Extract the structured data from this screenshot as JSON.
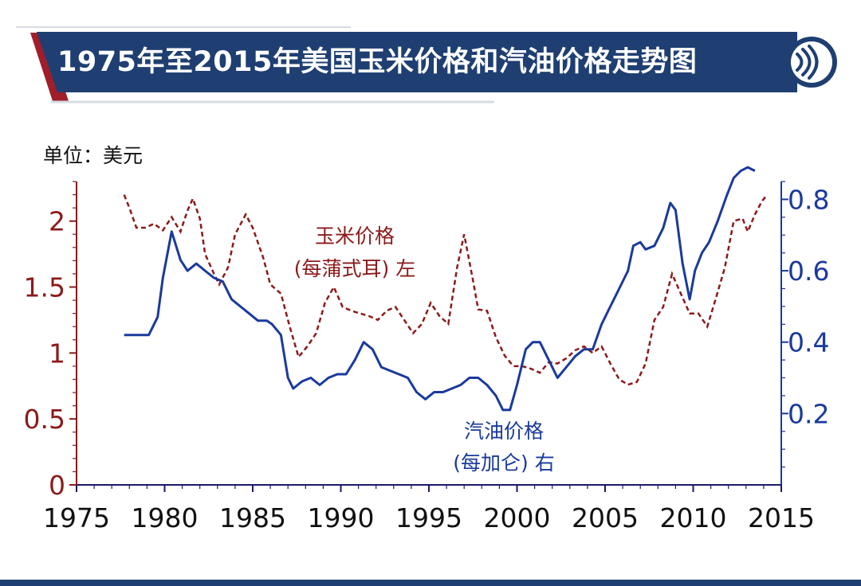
{
  "title": "1975年至2015年美国玉米价格和汽油价格走势图",
  "unit_label": "单位：美元",
  "icon": "sound-wave-logo-icon",
  "colors": {
    "corn": "#8b1a1a",
    "gasoline": "#1a3a9c",
    "banner": "#1f3f72",
    "accent": "#a01e2a",
    "axis_left": "#8b1a1a",
    "axis_right": "#1a3a9c"
  },
  "chart_data": {
    "type": "line",
    "title": "1975年至2015年美国玉米价格和汽油价格走势图",
    "xlabel": "",
    "x_range": [
      1975,
      2015
    ],
    "x_ticks": [
      1975,
      1980,
      1985,
      1990,
      1995,
      2000,
      2005,
      2010,
      2015
    ],
    "x_tick_labels": [
      "1975",
      "1980",
      "1985",
      "1990",
      "1995",
      "2000",
      "2005",
      "2010",
      "2015"
    ],
    "left_axis": {
      "range": [
        0,
        2.3
      ],
      "ticks": [
        0,
        0.5,
        1,
        1.5,
        2
      ],
      "tick_labels": [
        "0",
        "0.5",
        "1",
        "1.5",
        "2"
      ]
    },
    "right_axis": {
      "range": [
        0,
        0.85
      ],
      "ticks": [
        0.2,
        0.4,
        0.6,
        0.8
      ],
      "tick_labels": [
        "0.2",
        "0.4",
        "0.6",
        "0.8"
      ]
    },
    "grid": false,
    "legend": "inline annotations",
    "series": [
      {
        "name": "玉米价格",
        "unit_note": "(每蒲式耳) 左",
        "axis": "left",
        "style": "dashed",
        "points": [
          [
            1977.7,
            2.2
          ],
          [
            1978.0,
            2.1
          ],
          [
            1978.4,
            1.95
          ],
          [
            1978.9,
            1.95
          ],
          [
            1979.4,
            1.98
          ],
          [
            1979.9,
            1.93
          ],
          [
            1980.4,
            2.03
          ],
          [
            1980.9,
            1.92
          ],
          [
            1981.3,
            2.08
          ],
          [
            1981.6,
            2.17
          ],
          [
            1982.0,
            2.02
          ],
          [
            1982.3,
            1.75
          ],
          [
            1982.8,
            1.6
          ],
          [
            1983.1,
            1.52
          ],
          [
            1983.6,
            1.65
          ],
          [
            1984.0,
            1.9
          ],
          [
            1984.6,
            2.05
          ],
          [
            1985.0,
            1.95
          ],
          [
            1985.6,
            1.72
          ],
          [
            1986.0,
            1.52
          ],
          [
            1986.6,
            1.45
          ],
          [
            1987.1,
            1.2
          ],
          [
            1987.6,
            0.97
          ],
          [
            1988.1,
            1.05
          ],
          [
            1988.6,
            1.15
          ],
          [
            1989.1,
            1.38
          ],
          [
            1989.6,
            1.5
          ],
          [
            1990.1,
            1.35
          ],
          [
            1990.6,
            1.32
          ],
          [
            1991.1,
            1.3
          ],
          [
            1991.6,
            1.28
          ],
          [
            1992.1,
            1.25
          ],
          [
            1992.6,
            1.32
          ],
          [
            1993.1,
            1.35
          ],
          [
            1993.6,
            1.25
          ],
          [
            1994.1,
            1.15
          ],
          [
            1994.6,
            1.22
          ],
          [
            1995.1,
            1.38
          ],
          [
            1995.6,
            1.28
          ],
          [
            1996.1,
            1.22
          ],
          [
            1996.6,
            1.65
          ],
          [
            1997.0,
            1.9
          ],
          [
            1997.5,
            1.55
          ],
          [
            1997.8,
            1.33
          ],
          [
            1998.3,
            1.32
          ],
          [
            1998.8,
            1.12
          ],
          [
            1999.3,
            0.98
          ],
          [
            1999.8,
            0.9
          ],
          [
            2000.3,
            0.9
          ],
          [
            2000.8,
            0.88
          ],
          [
            2001.3,
            0.85
          ],
          [
            2001.8,
            0.93
          ],
          [
            2002.3,
            0.92
          ],
          [
            2002.8,
            0.96
          ],
          [
            2003.3,
            1.02
          ],
          [
            2003.8,
            1.05
          ],
          [
            2004.3,
            1.0
          ],
          [
            2004.8,
            1.05
          ],
          [
            2005.3,
            0.92
          ],
          [
            2005.8,
            0.8
          ],
          [
            2006.3,
            0.76
          ],
          [
            2006.8,
            0.78
          ],
          [
            2007.3,
            0.92
          ],
          [
            2007.8,
            1.25
          ],
          [
            2008.3,
            1.35
          ],
          [
            2008.8,
            1.6
          ],
          [
            2009.3,
            1.45
          ],
          [
            2009.8,
            1.3
          ],
          [
            2010.3,
            1.3
          ],
          [
            2010.8,
            1.2
          ],
          [
            2011.3,
            1.42
          ],
          [
            2011.8,
            1.65
          ],
          [
            2012.3,
            2.0
          ],
          [
            2012.8,
            2.02
          ],
          [
            2013.1,
            1.92
          ],
          [
            2013.5,
            2.05
          ],
          [
            2013.9,
            2.15
          ],
          [
            2014.2,
            2.2
          ]
        ]
      },
      {
        "name": "汽油价格",
        "unit_note": "(每加仑) 右",
        "axis": "right",
        "style": "solid",
        "points": [
          [
            1977.7,
            0.42
          ],
          [
            1978.3,
            0.42
          ],
          [
            1978.7,
            0.42
          ],
          [
            1979.1,
            0.42
          ],
          [
            1979.6,
            0.47
          ],
          [
            1979.9,
            0.58
          ],
          [
            1980.4,
            0.71
          ],
          [
            1980.9,
            0.63
          ],
          [
            1981.3,
            0.6
          ],
          [
            1981.8,
            0.62
          ],
          [
            1982.3,
            0.6
          ],
          [
            1982.8,
            0.58
          ],
          [
            1983.3,
            0.57
          ],
          [
            1983.8,
            0.52
          ],
          [
            1984.3,
            0.5
          ],
          [
            1984.8,
            0.48
          ],
          [
            1985.3,
            0.46
          ],
          [
            1985.8,
            0.46
          ],
          [
            1986.1,
            0.45
          ],
          [
            1986.6,
            0.42
          ],
          [
            1987.0,
            0.3
          ],
          [
            1987.3,
            0.27
          ],
          [
            1987.8,
            0.29
          ],
          [
            1988.3,
            0.3
          ],
          [
            1988.8,
            0.28
          ],
          [
            1989.3,
            0.3
          ],
          [
            1989.8,
            0.31
          ],
          [
            1990.3,
            0.31
          ],
          [
            1990.8,
            0.35
          ],
          [
            1991.3,
            0.4
          ],
          [
            1991.8,
            0.38
          ],
          [
            1992.3,
            0.33
          ],
          [
            1992.8,
            0.32
          ],
          [
            1993.3,
            0.31
          ],
          [
            1993.8,
            0.3
          ],
          [
            1994.3,
            0.26
          ],
          [
            1994.8,
            0.24
          ],
          [
            1995.3,
            0.26
          ],
          [
            1995.8,
            0.26
          ],
          [
            1996.3,
            0.27
          ],
          [
            1996.8,
            0.28
          ],
          [
            1997.3,
            0.3
          ],
          [
            1997.8,
            0.3
          ],
          [
            1998.3,
            0.28
          ],
          [
            1998.8,
            0.25
          ],
          [
            1999.2,
            0.21
          ],
          [
            1999.6,
            0.21
          ],
          [
            2000.0,
            0.28
          ],
          [
            2000.5,
            0.38
          ],
          [
            2000.9,
            0.4
          ],
          [
            2001.3,
            0.4
          ],
          [
            2001.8,
            0.35
          ],
          [
            2002.3,
            0.3
          ],
          [
            2002.8,
            0.33
          ],
          [
            2003.3,
            0.36
          ],
          [
            2003.8,
            0.38
          ],
          [
            2004.3,
            0.38
          ],
          [
            2004.8,
            0.45
          ],
          [
            2005.3,
            0.5
          ],
          [
            2005.8,
            0.55
          ],
          [
            2006.3,
            0.6
          ],
          [
            2006.6,
            0.67
          ],
          [
            2007.0,
            0.68
          ],
          [
            2007.3,
            0.66
          ],
          [
            2007.8,
            0.67
          ],
          [
            2008.3,
            0.72
          ],
          [
            2008.7,
            0.79
          ],
          [
            2009.0,
            0.77
          ],
          [
            2009.4,
            0.62
          ],
          [
            2009.8,
            0.52
          ],
          [
            2010.1,
            0.6
          ],
          [
            2010.5,
            0.65
          ],
          [
            2010.9,
            0.68
          ],
          [
            2011.4,
            0.74
          ],
          [
            2011.9,
            0.81
          ],
          [
            2012.3,
            0.86
          ],
          [
            2012.7,
            0.88
          ],
          [
            2013.1,
            0.89
          ],
          [
            2013.5,
            0.88
          ]
        ]
      }
    ]
  }
}
